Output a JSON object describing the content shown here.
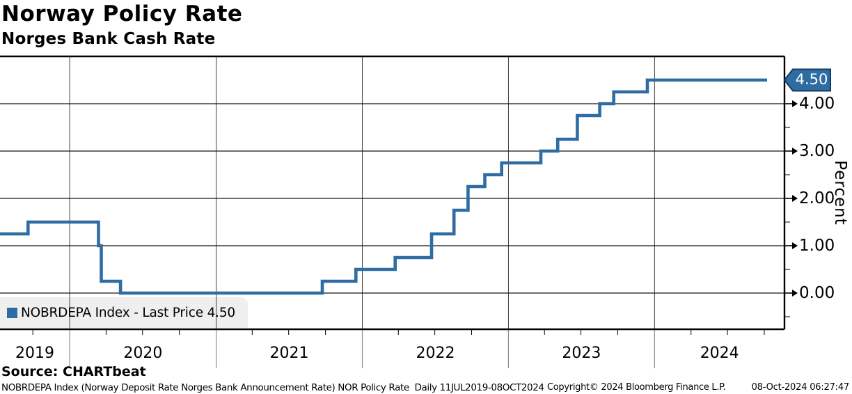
{
  "header": {
    "title": "Norway Policy Rate",
    "subtitle": "Norges Bank Cash Rate"
  },
  "legend": {
    "label": "NOBRDEPA Index - Last Price 4.50",
    "marker_color": "#2E6DA4"
  },
  "last_price_badge": {
    "value": "4.50",
    "fill": "#2E6DA4",
    "border": "#16395F",
    "text_color": "#FFFFFF"
  },
  "y_axis": {
    "title": "Percent",
    "major_tick_labels": [
      "0.00",
      "1.00",
      "2.00",
      "3.00",
      "4.00"
    ]
  },
  "x_axis": {
    "labels": [
      "2019",
      "2020",
      "2021",
      "2022",
      "2023",
      "2024"
    ]
  },
  "source_line": "Source: CHARTbeat",
  "footer": {
    "left": "NOBRDEPA Index (Norway Deposit Rate Norges Bank Announcement Rate) NOR Policy Rate  Daily 11JUL2019-08OCT2024",
    "copyright": "Copyright© 2024 Bloomberg Finance L.P.",
    "timestamp": "08-Oct-2024 06:27:47"
  },
  "chart_data": {
    "type": "line",
    "style": "step",
    "title": "Norway Policy Rate",
    "subtitle": "Norges Bank Cash Rate",
    "ylabel": "Percent",
    "xlabel": "",
    "x_range": [
      "2019-07-11",
      "2024-10-08"
    ],
    "ylim": [
      -0.75,
      5.0
    ],
    "y_major_ticks": [
      0,
      1,
      2,
      3,
      4
    ],
    "y_minor_ticks": [
      -0.5,
      0.5,
      1.5,
      2.5,
      3.5,
      4.5
    ],
    "grid": true,
    "legend_position": "bottom-left",
    "line_color": "#2E6DA4",
    "series": [
      {
        "name": "NOBRDEPA Index",
        "last_price": 4.5,
        "points": [
          [
            "2019-07-11",
            1.25
          ],
          [
            "2019-09-19",
            1.5
          ],
          [
            "2020-03-13",
            1.0
          ],
          [
            "2020-03-20",
            0.25
          ],
          [
            "2020-05-07",
            0.0
          ],
          [
            "2021-09-23",
            0.25
          ],
          [
            "2021-12-16",
            0.5
          ],
          [
            "2022-03-24",
            0.75
          ],
          [
            "2022-06-23",
            1.25
          ],
          [
            "2022-08-18",
            1.75
          ],
          [
            "2022-09-22",
            2.25
          ],
          [
            "2022-11-03",
            2.5
          ],
          [
            "2022-12-15",
            2.75
          ],
          [
            "2023-03-23",
            3.0
          ],
          [
            "2023-05-04",
            3.25
          ],
          [
            "2023-06-22",
            3.75
          ],
          [
            "2023-08-17",
            4.0
          ],
          [
            "2023-09-21",
            4.25
          ],
          [
            "2023-12-14",
            4.5
          ],
          [
            "2024-10-08",
            4.5
          ]
        ]
      }
    ]
  }
}
